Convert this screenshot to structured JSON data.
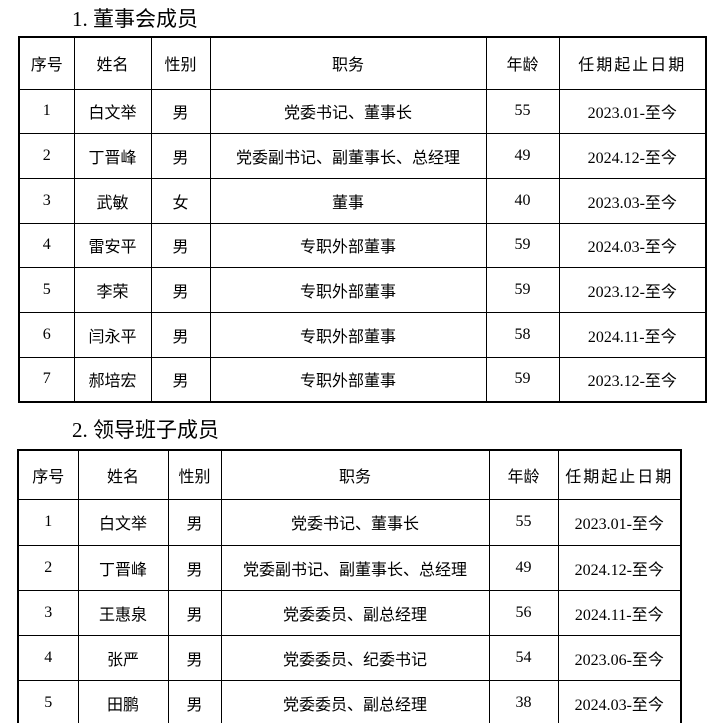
{
  "page": {
    "background_color": "#ffffff",
    "text_color": "#000000",
    "border_color": "#000000"
  },
  "sections": [
    {
      "title": "1. 董事会成员",
      "columns": [
        "序号",
        "姓名",
        "性别",
        "职务",
        "年龄",
        "任期起止日期"
      ],
      "rows": [
        [
          "1",
          "白文举",
          "男",
          "党委书记、董事长",
          "55",
          "2023.01-至今"
        ],
        [
          "2",
          "丁晋峰",
          "男",
          "党委副书记、副董事长、总经理",
          "49",
          "2024.12-至今"
        ],
        [
          "3",
          "武敏",
          "女",
          "董事",
          "40",
          "2023.03-至今"
        ],
        [
          "4",
          "雷安平",
          "男",
          "专职外部董事",
          "59",
          "2024.03-至今"
        ],
        [
          "5",
          "李荣",
          "男",
          "专职外部董事",
          "59",
          "2023.12-至今"
        ],
        [
          "6",
          "闫永平",
          "男",
          "专职外部董事",
          "58",
          "2024.11-至今"
        ],
        [
          "7",
          "郝培宏",
          "男",
          "专职外部董事",
          "59",
          "2023.12-至今"
        ]
      ]
    },
    {
      "title": "2. 领导班子成员",
      "columns": [
        "序号",
        "姓名",
        "性别",
        "职务",
        "年龄",
        "任期起止日期"
      ],
      "rows": [
        [
          "1",
          "白文举",
          "男",
          "党委书记、董事长",
          "55",
          "2023.01-至今"
        ],
        [
          "2",
          "丁晋峰",
          "男",
          "党委副书记、副董事长、总经理",
          "49",
          "2024.12-至今"
        ],
        [
          "3",
          "王惠泉",
          "男",
          "党委委员、副总经理",
          "56",
          "2024.11-至今"
        ],
        [
          "4",
          "张严",
          "男",
          "党委委员、纪委书记",
          "54",
          "2023.06-至今"
        ],
        [
          "5",
          "田鹏",
          "男",
          "党委委员、副总经理",
          "38",
          "2024.03-至今"
        ]
      ]
    }
  ]
}
